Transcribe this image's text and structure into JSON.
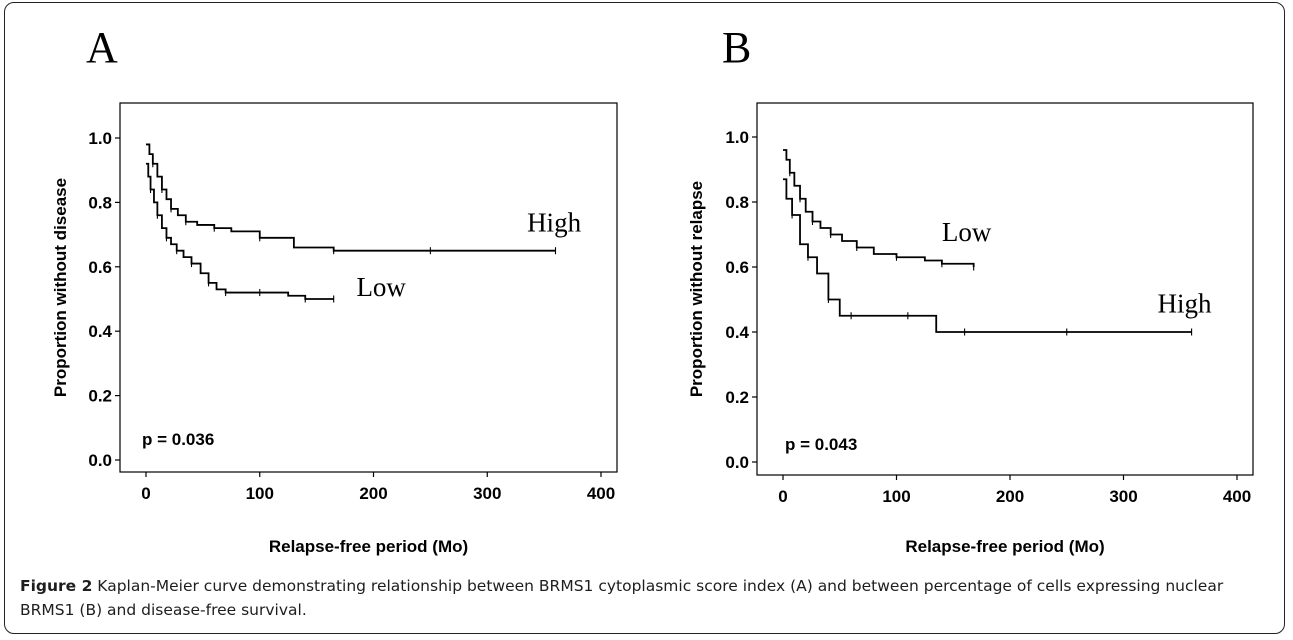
{
  "panels": [
    {
      "letter": "A",
      "chart_data": {
        "type": "line",
        "title": "",
        "xlabel": "Relapse-free period (Mo)",
        "ylabel": "Proportion without disease",
        "xlim": [
          0,
          400
        ],
        "ylim": [
          0,
          1
        ],
        "xticks": [
          "0",
          "100",
          "200",
          "300",
          "400"
        ],
        "yticks": [
          "0.0",
          "0.2",
          "0.4",
          "0.6",
          "0.8",
          "1.0"
        ],
        "annotation": "p = 0.036",
        "series": [
          {
            "name": "High",
            "x": [
              0,
              3,
              6,
              10,
              14,
              18,
              22,
              28,
              35,
              45,
              60,
              75,
              100,
              130,
              165,
              200,
              250,
              300,
              360
            ],
            "y": [
              0.98,
              0.95,
              0.92,
              0.88,
              0.84,
              0.81,
              0.78,
              0.76,
              0.74,
              0.73,
              0.72,
              0.71,
              0.69,
              0.66,
              0.65,
              0.65,
              0.65,
              0.65,
              0.65
            ],
            "label_x": 335,
            "label_y": 0.71
          },
          {
            "name": "Low",
            "x": [
              0,
              2,
              4,
              7,
              10,
              14,
              18,
              22,
              27,
              33,
              40,
              48,
              55,
              62,
              70,
              80,
              100,
              125,
              140,
              165
            ],
            "y": [
              0.92,
              0.88,
              0.84,
              0.8,
              0.76,
              0.72,
              0.69,
              0.67,
              0.65,
              0.63,
              0.61,
              0.58,
              0.55,
              0.53,
              0.52,
              0.52,
              0.52,
              0.51,
              0.5,
              0.5
            ],
            "label_x": 185,
            "label_y": 0.51
          }
        ]
      }
    },
    {
      "letter": "B",
      "chart_data": {
        "type": "line",
        "title": "",
        "xlabel": "Relapse-free period  (Mo)",
        "ylabel": "Proportion without relapse",
        "xlim": [
          0,
          400
        ],
        "ylim": [
          0,
          1
        ],
        "xticks": [
          "0",
          "100",
          "200",
          "300",
          "400"
        ],
        "yticks": [
          "0.0",
          "0.2",
          "0.4",
          "0.6",
          "0.8",
          "1.0"
        ],
        "annotation": "p = 0.043",
        "series": [
          {
            "name": "Low",
            "x": [
              0,
              3,
              6,
              10,
              15,
              20,
              26,
              33,
              42,
              52,
              65,
              80,
              100,
              125,
              140,
              168
            ],
            "y": [
              0.96,
              0.93,
              0.89,
              0.85,
              0.81,
              0.77,
              0.74,
              0.72,
              0.7,
              0.68,
              0.66,
              0.64,
              0.63,
              0.62,
              0.61,
              0.6
            ],
            "label_x": 140,
            "label_y": 0.68
          },
          {
            "name": "High",
            "x": [
              0,
              3,
              8,
              15,
              22,
              30,
              40,
              50,
              60,
              80,
              110,
              135,
              160,
              200,
              250,
              300,
              360
            ],
            "y": [
              0.87,
              0.81,
              0.76,
              0.67,
              0.63,
              0.58,
              0.5,
              0.45,
              0.45,
              0.45,
              0.45,
              0.4,
              0.4,
              0.4,
              0.4,
              0.4,
              0.4
            ],
            "label_x": 330,
            "label_y": 0.46
          }
        ]
      }
    }
  ],
  "caption": {
    "label": "Figure 2",
    "text": " Kaplan-Meier curve demonstrating relationship between BRMS1 cytoplasmic score index (A) and between percentage of cells expressing nuclear BRMS1 (B) and disease-free survival."
  }
}
